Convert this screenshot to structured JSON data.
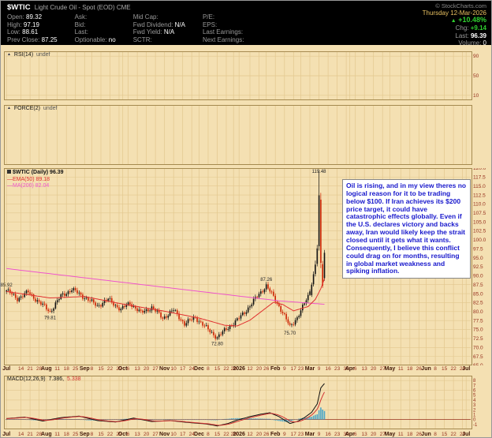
{
  "icons": {
    "up_arrow": "▲",
    "panel_arrow": "▲"
  },
  "header": {
    "symbol": "$WTIC",
    "description": "Light Crude Oil - Spot (EOD) CME",
    "copyright": "© StockCharts.com",
    "date": "Thursday 12-Mar-2026",
    "cols": [
      {
        "rows": [
          {
            "label": "Open:",
            "value": "89.32"
          },
          {
            "label": "High:",
            "value": "97.19"
          },
          {
            "label": "Low:",
            "value": "88.61"
          },
          {
            "label": "Prev Close:",
            "value": "87.25"
          }
        ]
      },
      {
        "rows": [
          {
            "label": "Ask:",
            "value": ""
          },
          {
            "label": "Bid:",
            "value": ""
          },
          {
            "label": "Last:",
            "value": ""
          },
          {
            "label": "Optionable:",
            "value": "no"
          }
        ]
      },
      {
        "rows": [
          {
            "label": "Mid Cap:",
            "value": ""
          },
          {
            "label": "Fwd Dividend:",
            "value": "N/A"
          },
          {
            "label": "Fwd Yield:",
            "value": "N/A"
          },
          {
            "label": "SCTR:",
            "value": ""
          }
        ]
      },
      {
        "rows": [
          {
            "label": "P/E:",
            "value": ""
          },
          {
            "label": "EPS:",
            "value": ""
          },
          {
            "label": "Last Earnings:",
            "value": ""
          },
          {
            "label": "Next Earnings:",
            "value": ""
          }
        ]
      }
    ],
    "change": {
      "pct": "+10.48%",
      "chg_label": "Chg:",
      "chg": "+9.14",
      "last_label": "Last:",
      "last": "96.39",
      "vol_label": "Volume:",
      "vol": "0"
    }
  },
  "chart_data": {
    "type": "candlestick",
    "title": "$WTIC Light Crude Oil - Spot (EOD) CME",
    "legend": {
      "title": "$WTIC (Daily) 96.39",
      "ema": "—EMA(50) 89.18",
      "ma": "—MA(200) 82.04"
    },
    "colors": {
      "bg": "#F4E0B2",
      "grid": "#E2C78E",
      "frame": "#A58A50",
      "axis_text": "#96301E",
      "candle_up": "#111111",
      "candle_down": "#CC2200",
      "macd_line": "#111111",
      "macd_signal": "#D03030"
    },
    "x_axis": {
      "total_days": 256,
      "data_days": 176,
      "ticks": [
        [
          "Jul",
          0
        ],
        [
          "14",
          8
        ],
        [
          "21",
          13
        ],
        [
          "28",
          18
        ],
        [
          "Aug",
          22
        ],
        [
          "11",
          28
        ],
        [
          "18",
          33
        ],
        [
          "25",
          38
        ],
        [
          "Sep",
          43
        ],
        [
          "8",
          47
        ],
        [
          "15",
          52
        ],
        [
          "22",
          57
        ],
        [
          "29",
          62
        ],
        [
          "Oct",
          64
        ],
        [
          "6",
          67
        ],
        [
          "13",
          72
        ],
        [
          "20",
          77
        ],
        [
          "27",
          82
        ],
        [
          "Nov",
          87
        ],
        [
          "10",
          92
        ],
        [
          "17",
          97
        ],
        [
          "24",
          102
        ],
        [
          "Dec",
          106
        ],
        [
          "8",
          111
        ],
        [
          "15",
          116
        ],
        [
          "22",
          121
        ],
        [
          "29",
          125
        ],
        [
          "2026",
          128
        ],
        [
          "12",
          134
        ],
        [
          "20",
          139
        ],
        [
          "26",
          143
        ],
        [
          "Feb",
          148
        ],
        [
          "9",
          153
        ],
        [
          "17",
          158
        ],
        [
          "23",
          162
        ],
        [
          "Mar",
          167
        ],
        [
          "9",
          172
        ],
        [
          "16",
          177
        ],
        [
          "23",
          182
        ],
        [
          "30",
          187
        ],
        [
          "Apr",
          189
        ],
        [
          "6",
          192
        ],
        [
          "13",
          197
        ],
        [
          "20",
          202
        ],
        [
          "27",
          207
        ],
        [
          "May",
          211
        ],
        [
          "11",
          217
        ],
        [
          "18",
          222
        ],
        [
          "26",
          227
        ],
        [
          "Jun",
          231
        ],
        [
          "8",
          236
        ],
        [
          "15",
          241
        ],
        [
          "22",
          246
        ],
        [
          "29",
          251
        ],
        [
          "Jul",
          253
        ]
      ]
    },
    "price_axis": {
      "min": 65,
      "max": 120,
      "step": 2.5
    },
    "close_keypoints": [
      [
        0,
        85.9
      ],
      [
        6,
        83.6
      ],
      [
        12,
        85.4
      ],
      [
        18,
        82.6
      ],
      [
        24,
        80.0
      ],
      [
        30,
        84.3
      ],
      [
        36,
        86.2
      ],
      [
        43,
        84.0
      ],
      [
        50,
        81.6
      ],
      [
        56,
        83.4
      ],
      [
        63,
        80.6
      ],
      [
        68,
        82.4
      ],
      [
        74,
        79.6
      ],
      [
        80,
        81.2
      ],
      [
        86,
        78.2
      ],
      [
        92,
        80.4
      ],
      [
        98,
        76.6
      ],
      [
        104,
        78.4
      ],
      [
        110,
        75.4
      ],
      [
        116,
        72.8
      ],
      [
        122,
        75.6
      ],
      [
        127,
        77.6
      ],
      [
        132,
        80.4
      ],
      [
        138,
        84.2
      ],
      [
        143,
        87.3
      ],
      [
        148,
        83.2
      ],
      [
        152,
        79.8
      ],
      [
        156,
        75.7
      ],
      [
        160,
        78.4
      ],
      [
        163,
        81.2
      ],
      [
        166,
        84.2
      ],
      [
        168,
        87.5
      ]
    ],
    "final_candles": {
      "start_index": 168,
      "ohlc": [
        [
          84.6,
          88.1,
          84.1,
          87.5
        ],
        [
          87.6,
          91.2,
          87.0,
          90.4
        ],
        [
          90.5,
          94.2,
          89.8,
          93.1
        ],
        [
          93.3,
          98.6,
          92.6,
          97.6
        ],
        [
          98.2,
          119.48,
          97.0,
          112.4
        ],
        [
          111.2,
          113.1,
          92.1,
          93.6
        ],
        [
          93.2,
          94.1,
          86.6,
          87.25
        ],
        [
          89.32,
          97.19,
          88.61,
          96.39
        ]
      ]
    },
    "overlays": {
      "ema50": {
        "color": "#E03030",
        "keypoints": [
          [
            0,
            85.6
          ],
          [
            24,
            83.8
          ],
          [
            43,
            84.2
          ],
          [
            63,
            82.2
          ],
          [
            86,
            80.2
          ],
          [
            106,
            78.2
          ],
          [
            120,
            76.2
          ],
          [
            127,
            76.0
          ],
          [
            134,
            77.6
          ],
          [
            147,
            82.6
          ],
          [
            152,
            82.0
          ],
          [
            158,
            80.2
          ],
          [
            166,
            81.4
          ],
          [
            170,
            83.4
          ],
          [
            173,
            86.4
          ],
          [
            175,
            89.18
          ]
        ]
      },
      "ma200": {
        "color": "#EE55CC",
        "keypoints": [
          [
            0,
            92.0
          ],
          [
            40,
            89.6
          ],
          [
            80,
            87.2
          ],
          [
            120,
            84.8
          ],
          [
            150,
            83.0
          ],
          [
            175,
            82.04
          ]
        ]
      }
    },
    "price_labels": [
      {
        "day": 0,
        "price": 86.6,
        "text": "85.92",
        "pos": "above"
      },
      {
        "day": 24,
        "price": 79.2,
        "text": "79.81",
        "pos": "below"
      },
      {
        "day": 116,
        "price": 71.9,
        "text": "72.80",
        "pos": "below"
      },
      {
        "day": 143,
        "price": 88.1,
        "text": "87.26",
        "pos": "above"
      },
      {
        "day": 156,
        "price": 74.9,
        "text": "75.70",
        "pos": "below"
      },
      {
        "day": 172,
        "price": 119.48,
        "text": "119.48",
        "pos": "above"
      }
    ],
    "indicators": {
      "rsi": {
        "label": "RSI(14)",
        "value": "undef",
        "ticks": [
          90,
          50,
          10
        ]
      },
      "force": {
        "label": "FORCE(2)",
        "value": "undef"
      },
      "macd": {
        "label": "MACD(12,26,9)",
        "value_main": "7.386,",
        "value_signal": "5.338",
        "axis": {
          "min": -2,
          "max": 9
        },
        "ticks": [
          8,
          7,
          6,
          5,
          4,
          3,
          2,
          1,
          0,
          -1
        ],
        "histogram_color": "#4BA6C9",
        "keypoints": [
          [
            0,
            0.2
          ],
          [
            10,
            0.5
          ],
          [
            20,
            -0.3
          ],
          [
            30,
            0.4
          ],
          [
            40,
            0.7
          ],
          [
            50,
            -0.2
          ],
          [
            60,
            -0.5
          ],
          [
            70,
            0.3
          ],
          [
            80,
            -0.4
          ],
          [
            90,
            -0.2
          ],
          [
            100,
            -0.6
          ],
          [
            110,
            -0.9
          ],
          [
            116,
            -1.3
          ],
          [
            122,
            -0.8
          ],
          [
            127,
            -0.1
          ],
          [
            134,
            0.6
          ],
          [
            140,
            1.1
          ],
          [
            145,
            1.4
          ],
          [
            150,
            0.6
          ],
          [
            156,
            -0.8
          ],
          [
            160,
            -0.4
          ],
          [
            164,
            0.4
          ],
          [
            168,
            1.5
          ],
          [
            171,
            3.2
          ],
          [
            173,
            6.5
          ],
          [
            175,
            7.386
          ]
        ]
      }
    },
    "annotation": {
      "text": "Oil is rising, and in my view theres no logical reason for it to be trading below $100. If Iran achieves its $200 price target, it could have catastrophic effects globally. Even if the U.S. declares victory and backs away, Iran would likely keep the strait closed until it gets what it wants. Consequently, I believe this conflict could drag on for months, resulting in global market weakness and spiking inflation."
    }
  }
}
